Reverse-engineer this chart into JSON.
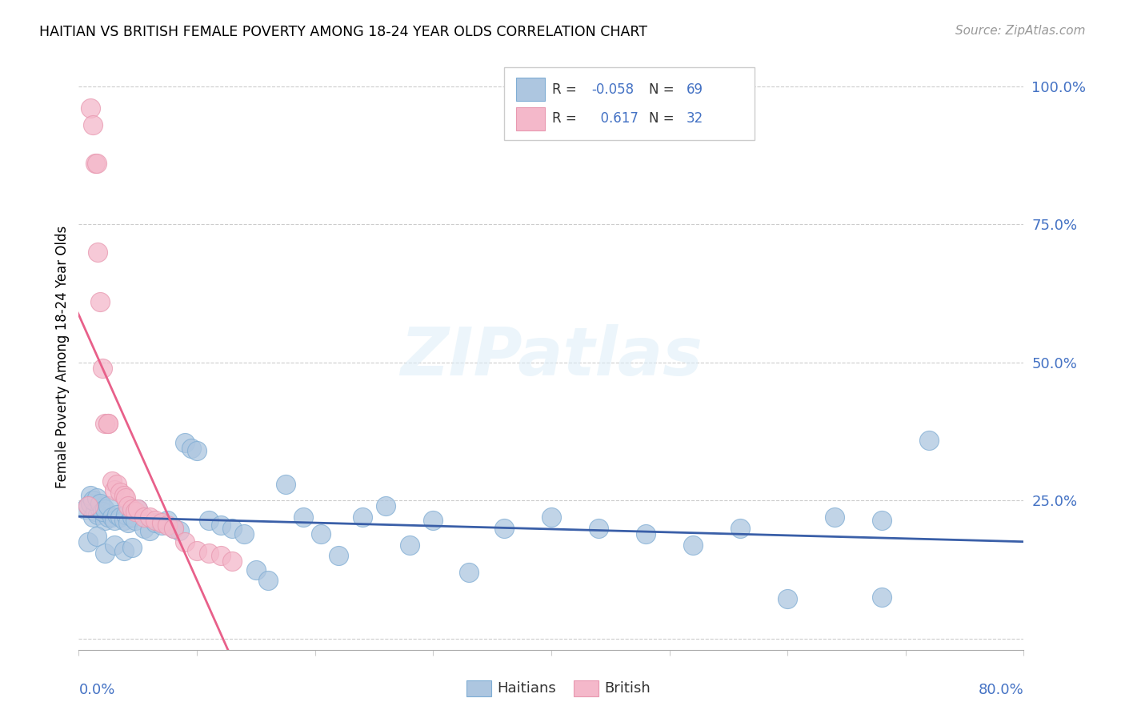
{
  "title": "HAITIAN VS BRITISH FEMALE POVERTY AMONG 18-24 YEAR OLDS CORRELATION CHART",
  "source": "Source: ZipAtlas.com",
  "ylabel": "Female Poverty Among 18-24 Year Olds",
  "r_haitian": -0.058,
  "n_haitian": 69,
  "r_british": 0.617,
  "n_british": 32,
  "haitian_color": "#adc6e0",
  "haitian_edge": "#7fadd4",
  "british_color": "#f4b8ca",
  "british_edge": "#e898b0",
  "haitian_line_color": "#3a5fa8",
  "british_line_color": "#e8608a",
  "xmin": 0.0,
  "xmax": 0.8,
  "ymin": -0.02,
  "ymax": 1.04,
  "haitian_x": [
    0.005,
    0.008,
    0.01,
    0.012,
    0.014,
    0.016,
    0.018,
    0.02,
    0.022,
    0.025,
    0.01,
    0.012,
    0.015,
    0.018,
    0.02,
    0.022,
    0.025,
    0.028,
    0.03,
    0.032,
    0.035,
    0.038,
    0.04,
    0.042,
    0.045,
    0.048,
    0.05,
    0.055,
    0.06,
    0.065,
    0.07,
    0.075,
    0.08,
    0.085,
    0.09,
    0.095,
    0.1,
    0.11,
    0.12,
    0.13,
    0.14,
    0.15,
    0.16,
    0.175,
    0.19,
    0.205,
    0.22,
    0.24,
    0.26,
    0.28,
    0.3,
    0.33,
    0.36,
    0.4,
    0.44,
    0.48,
    0.52,
    0.56,
    0.6,
    0.64,
    0.68,
    0.72,
    0.008,
    0.015,
    0.022,
    0.03,
    0.038,
    0.045,
    0.68
  ],
  "haitian_y": [
    0.235,
    0.24,
    0.245,
    0.22,
    0.23,
    0.225,
    0.235,
    0.24,
    0.215,
    0.22,
    0.26,
    0.25,
    0.255,
    0.245,
    0.23,
    0.235,
    0.24,
    0.22,
    0.215,
    0.225,
    0.22,
    0.215,
    0.225,
    0.21,
    0.22,
    0.215,
    0.235,
    0.2,
    0.195,
    0.21,
    0.205,
    0.215,
    0.2,
    0.195,
    0.355,
    0.345,
    0.34,
    0.215,
    0.205,
    0.2,
    0.19,
    0.125,
    0.105,
    0.28,
    0.22,
    0.19,
    0.15,
    0.22,
    0.24,
    0.17,
    0.215,
    0.12,
    0.2,
    0.22,
    0.2,
    0.19,
    0.17,
    0.2,
    0.073,
    0.22,
    0.215,
    0.36,
    0.175,
    0.185,
    0.155,
    0.17,
    0.16,
    0.165,
    0.075
  ],
  "british_x": [
    0.008,
    0.01,
    0.012,
    0.014,
    0.016,
    0.018,
    0.02,
    0.022,
    0.025,
    0.028,
    0.03,
    0.032,
    0.035,
    0.038,
    0.04,
    0.042,
    0.045,
    0.048,
    0.05,
    0.055,
    0.06,
    0.065,
    0.07,
    0.075,
    0.08,
    0.09,
    0.1,
    0.11,
    0.12,
    0.13,
    0.015,
    0.025
  ],
  "british_y": [
    0.24,
    0.96,
    0.93,
    0.86,
    0.7,
    0.61,
    0.49,
    0.39,
    0.39,
    0.285,
    0.27,
    0.28,
    0.265,
    0.26,
    0.255,
    0.24,
    0.235,
    0.23,
    0.235,
    0.22,
    0.22,
    0.215,
    0.21,
    0.205,
    0.2,
    0.175,
    0.16,
    0.155,
    0.15,
    0.14,
    0.86,
    0.39
  ]
}
